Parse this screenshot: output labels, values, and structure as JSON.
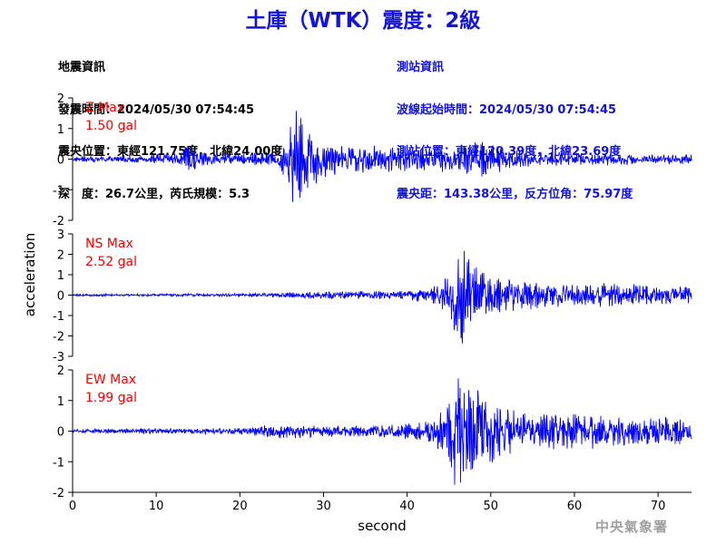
{
  "title": "土庫（WTK）震度：2級",
  "quake_info": {
    "heading": "地震資訊",
    "origin_time": "發震時間：2024/05/30 07:54:45",
    "epicenter": "震央位置：東經121.75度，北緯24.00度",
    "depth_magnitude": "深　度：26.7公里，芮氏規模：5.3"
  },
  "station_info": {
    "heading": "測站資訊",
    "wave_start": "波線起始時間：2024/05/30 07:54:45",
    "location": "測站位置：東經120.39度，北緯23.69度",
    "distance_azimuth": "震央距：143.38公里，反方位角：75.97度"
  },
  "credit": "中央氣象署",
  "colors": {
    "trace": "#0000ff",
    "max_label": "#ff0000",
    "title": "#1414d8",
    "axis": "#000000"
  },
  "chart_data": {
    "type": "line",
    "xlabel": "second",
    "ylabel": "acceleration",
    "xlim": [
      0,
      74
    ],
    "xticks": [
      0,
      10,
      20,
      30,
      40,
      50,
      60,
      70
    ],
    "grid": false,
    "panels": [
      {
        "component": "Z",
        "max_label": "Z Max",
        "max_value": "1.50 gal",
        "ylim": [
          -2,
          2
        ],
        "yticks": [
          -2,
          -1,
          0,
          1,
          2
        ],
        "envelope": {
          "t": [
            0,
            5,
            8,
            13,
            13.9,
            15,
            18,
            22,
            24,
            25.5,
            26.3,
            27,
            28,
            29,
            30,
            33,
            38,
            41,
            45,
            47,
            48,
            52,
            55,
            60,
            65,
            70,
            74
          ],
          "amp": [
            0.08,
            0.1,
            0.12,
            0.2,
            0.55,
            0.22,
            0.16,
            0.2,
            0.25,
            0.55,
            1.4,
            1.5,
            1.1,
            0.85,
            0.6,
            0.45,
            0.4,
            0.35,
            0.4,
            0.45,
            0.6,
            0.38,
            0.25,
            0.2,
            0.18,
            0.16,
            0.15
          ]
        }
      },
      {
        "component": "NS",
        "max_label": "NS Max",
        "max_value": "2.52 gal",
        "ylim": [
          -3,
          3
        ],
        "yticks": [
          -3,
          -2,
          -1,
          0,
          1,
          2,
          3
        ],
        "envelope": {
          "t": [
            0,
            10,
            20,
            26,
            30,
            40,
            44,
            45.5,
            46.8,
            48,
            50,
            53,
            57,
            60,
            65,
            70,
            74
          ],
          "amp": [
            0.05,
            0.06,
            0.08,
            0.12,
            0.18,
            0.2,
            0.5,
            1.9,
            2.52,
            1.5,
            0.9,
            0.7,
            0.6,
            0.5,
            0.55,
            0.45,
            0.4
          ]
        }
      },
      {
        "component": "EW",
        "max_label": "EW Max",
        "max_value": "1.99 gal",
        "ylim": [
          -2,
          2
        ],
        "yticks": [
          -2,
          -1,
          0,
          1,
          2
        ],
        "envelope": {
          "t": [
            0,
            10,
            20,
            26,
            28,
            38,
            43,
            45,
            46,
            47,
            49,
            52,
            55,
            58,
            62,
            67,
            70,
            74
          ],
          "amp": [
            0.07,
            0.08,
            0.1,
            0.25,
            0.18,
            0.2,
            0.35,
            0.9,
            1.99,
            1.7,
            1.2,
            0.75,
            0.45,
            0.6,
            0.55,
            0.5,
            0.45,
            0.4
          ]
        }
      }
    ]
  }
}
